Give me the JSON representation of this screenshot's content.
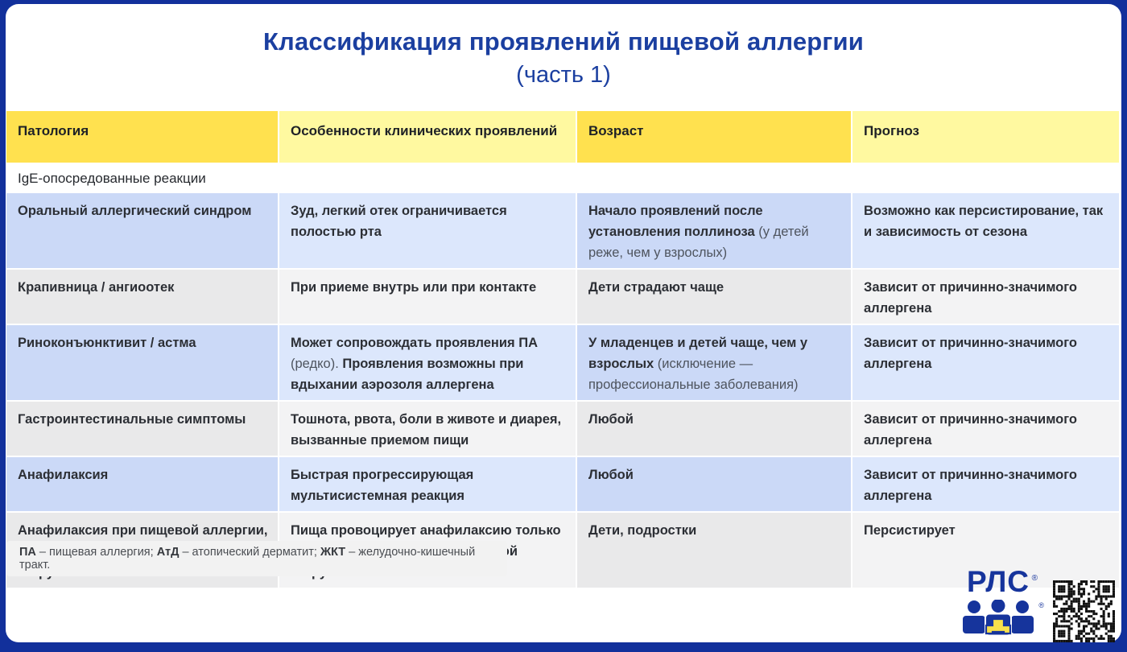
{
  "page": {
    "title_line1": "Классификация проявлений пищевой аллергии",
    "title_line2": "(часть 1)"
  },
  "colors": {
    "frame_blue": "#12309B",
    "title_blue": "#1B3FA0",
    "header_yellow_dark": "#FFE14F",
    "header_yellow_light": "#FFF9A0",
    "row_blue_dark": "#CBD9F7",
    "row_blue_light": "#DCE7FC",
    "row_gray_dark": "#E9E9EA",
    "row_gray_light": "#F3F3F4",
    "logo_blue": "#16349C",
    "logo_yellow": "#F7E04B"
  },
  "table": {
    "columns": [
      "Патология",
      "Особенности клинических проявлений",
      "Возраст",
      "Прогноз"
    ],
    "section_label": "IgE-опосредованные реакции",
    "rows": [
      {
        "tint": "blue",
        "cells": [
          [
            {
              "t": "Оральный аллергический синдром",
              "b": true
            }
          ],
          [
            {
              "t": "Зуд, легкий отек ограничивается полостью рта",
              "b": true
            }
          ],
          [
            {
              "t": "Начало проявлений после установления поллиноза ",
              "b": true
            },
            {
              "t": "(у детей реже, чем у взрослых)",
              "b": false
            }
          ],
          [
            {
              "t": "Возможно как персистирование, так и зависимость от сезона",
              "b": true
            }
          ]
        ]
      },
      {
        "tint": "gray",
        "cells": [
          [
            {
              "t": "Крапивница / ангиоотек",
              "b": true
            }
          ],
          [
            {
              "t": "При приеме внутрь или при контакте",
              "b": true
            }
          ],
          [
            {
              "t": "Дети страдают чаще",
              "b": true
            }
          ],
          [
            {
              "t": "Зависит от причинно-значимого аллергена",
              "b": true
            }
          ]
        ]
      },
      {
        "tint": "blue",
        "cells": [
          [
            {
              "t": "Риноконъюнктивит / астма",
              "b": true
            }
          ],
          [
            {
              "t": "Может сопровождать проявления ПА ",
              "b": true
            },
            {
              "t": "(редко).",
              "b": false
            },
            {
              "t": " Проявления возможны при вдыхании аэрозоля аллергена",
              "b": true
            }
          ],
          [
            {
              "t": "У младенцев и детей чаще, чем у взрослых ",
              "b": true
            },
            {
              "t": "(исключение — профессиональные заболевания)",
              "b": false
            }
          ],
          [
            {
              "t": "Зависит от причинно-значимого аллергена",
              "b": true
            }
          ]
        ]
      },
      {
        "tint": "gray",
        "cells": [
          [
            {
              "t": "Гастроинтестинальные симптомы",
              "b": true
            }
          ],
          [
            {
              "t": "Тошнота, рвота, боли в животе и диарея, вызванные приемом пищи",
              "b": true
            }
          ],
          [
            {
              "t": "Любой",
              "b": true
            }
          ],
          [
            {
              "t": "Зависит от причинно-значимого аллергена",
              "b": true
            }
          ]
        ]
      },
      {
        "tint": "blue",
        "cells": [
          [
            {
              "t": "Анафилаксия",
              "b": true
            }
          ],
          [
            {
              "t": "Быстрая прогрессирующая мультисистемная реакция",
              "b": true
            }
          ],
          [
            {
              "t": "Любой",
              "b": true
            }
          ],
          [
            {
              "t": "Зависит от причинно-значимого аллергена",
              "b": true
            }
          ]
        ]
      },
      {
        "tint": "gray",
        "cells": [
          [
            {
              "t": "Анафилаксия при пищевой аллергии, индуцированная физической нагрузкой",
              "b": true
            }
          ],
          [
            {
              "t": "Пища провоцирует анафилаксию только в случае дальнейшей физической нагрузки",
              "b": true
            }
          ],
          [
            {
              "t": "Дети, подростки",
              "b": true
            }
          ],
          [
            {
              "t": "Персистирует",
              "b": true
            }
          ]
        ]
      }
    ]
  },
  "footnote": {
    "runs": [
      {
        "t": "ПА",
        "b": true
      },
      {
        "t": " – пищевая аллергия; ",
        "b": false
      },
      {
        "t": "АтД",
        "b": true
      },
      {
        "t": " – атопический дерматит; ",
        "b": false
      },
      {
        "t": "ЖКТ",
        "b": true
      },
      {
        "t": " – желудочно-кишечный тракт.",
        "b": false
      }
    ]
  },
  "branding": {
    "logo_text": "РЛС",
    "registered_mark": "®",
    "qr_icon": "qr-code",
    "people_icon": "three-people-with-cross"
  }
}
